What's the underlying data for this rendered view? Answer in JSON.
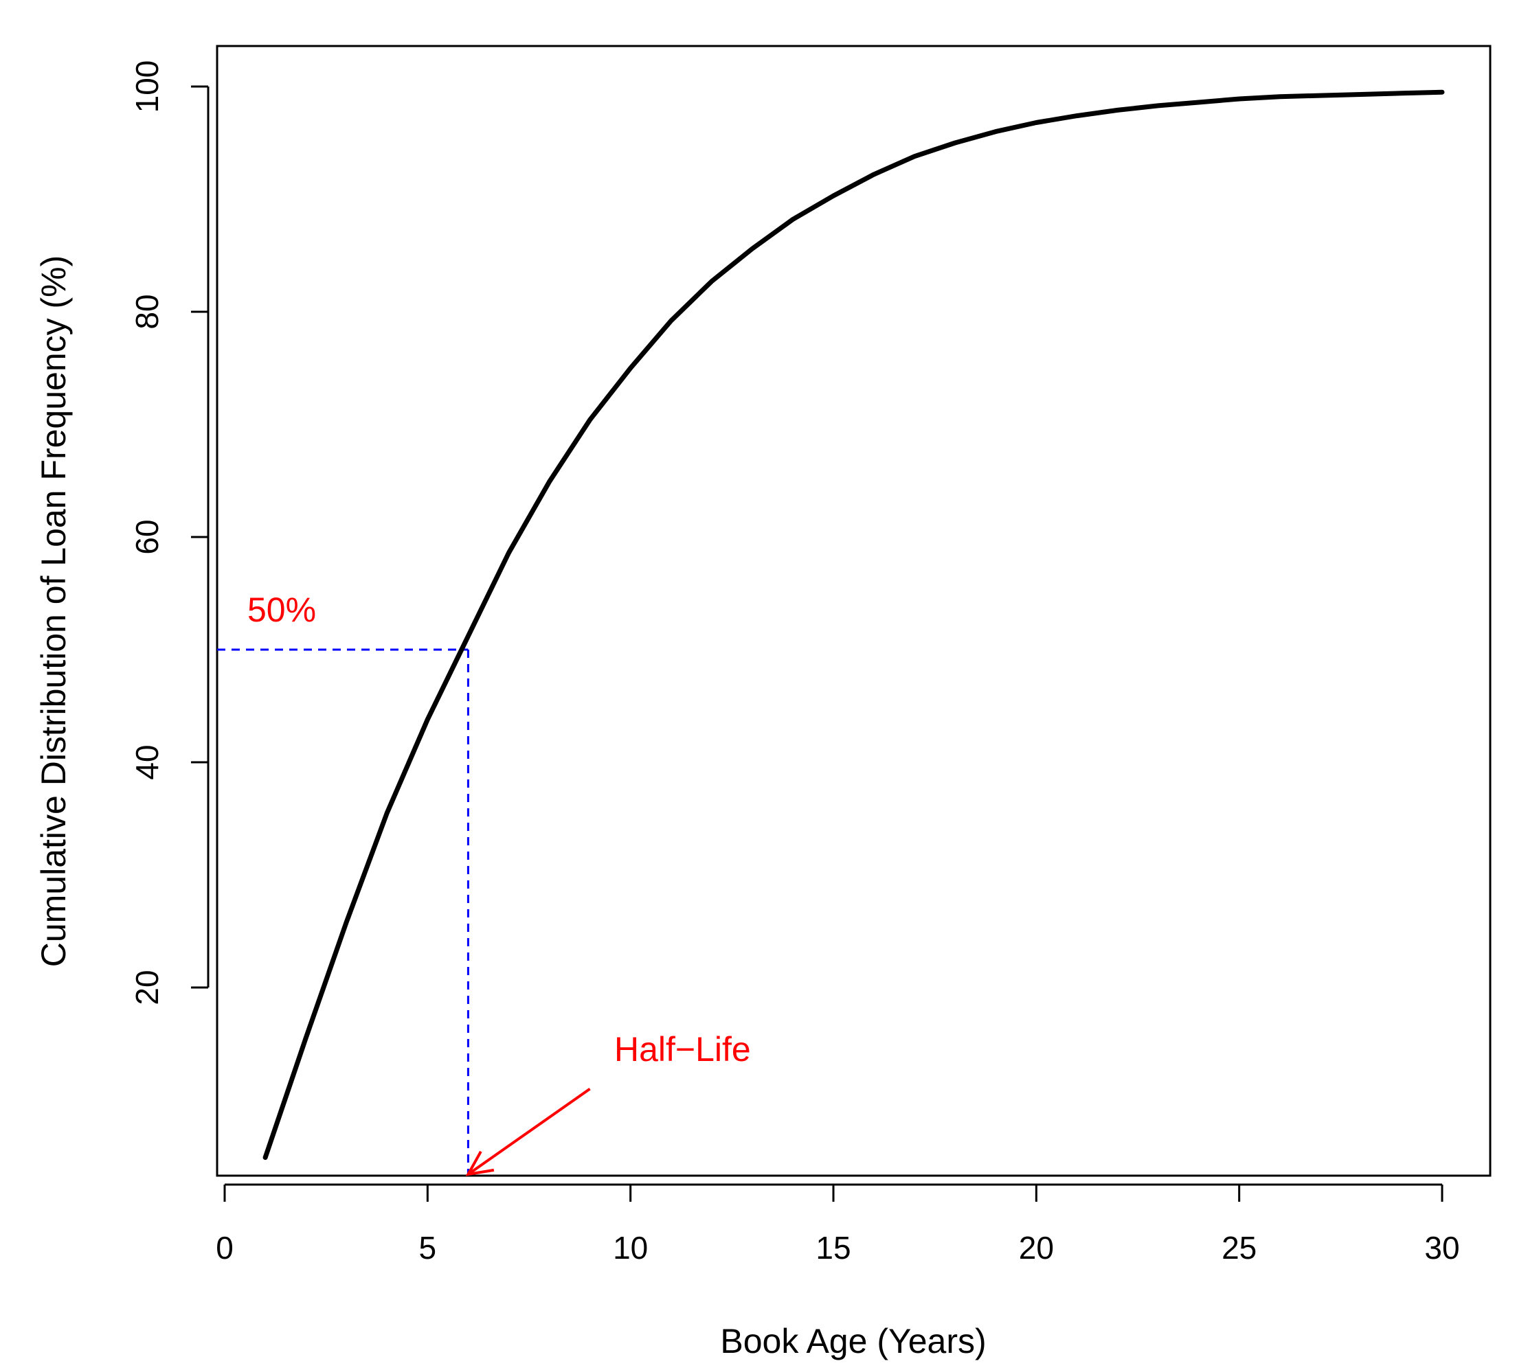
{
  "chart_data": {
    "type": "line",
    "title": "",
    "xlabel": "Book Age (Years)",
    "ylabel": "Cumulative Distribution of Loan Frequency (%)",
    "xlim": [
      0,
      30
    ],
    "ylim": [
      0,
      100
    ],
    "xticks": [
      0,
      5,
      10,
      15,
      20,
      25,
      30
    ],
    "yticks": [
      20,
      40,
      60,
      80,
      100
    ],
    "grid": false,
    "series": [
      {
        "color": "#000000",
        "x": [
          1,
          2,
          3,
          4,
          5,
          6,
          7,
          8,
          9,
          10,
          11,
          12,
          13,
          14,
          15,
          16,
          17,
          18,
          19,
          20,
          21,
          22,
          23,
          24,
          25,
          26,
          27,
          28,
          29,
          30
        ],
        "y": [
          4.9,
          15.5,
          25.8,
          35.5,
          43.8,
          51.2,
          58.6,
          64.9,
          70.4,
          75.0,
          79.2,
          82.7,
          85.6,
          88.2,
          90.3,
          92.2,
          93.8,
          95.0,
          96.0,
          96.8,
          97.4,
          97.9,
          98.3,
          98.6,
          98.9,
          99.1,
          99.2,
          99.3,
          99.4,
          99.5
        ]
      }
    ],
    "annotations": {
      "half_life_x": 6,
      "half_life_y": 50,
      "reference_color": "#0000ff",
      "annotation_color": "#ff0000",
      "percent_label": "50%",
      "half_life_label": "Half−Life",
      "arrow_from": [
        9,
        11
      ]
    }
  }
}
